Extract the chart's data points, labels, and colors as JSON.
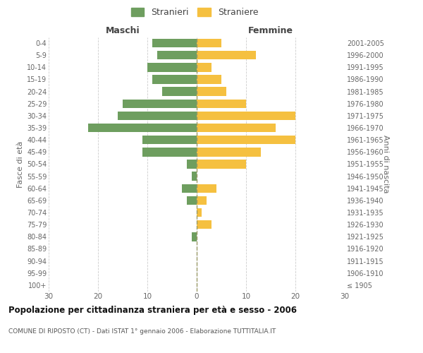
{
  "age_groups": [
    "100+",
    "95-99",
    "90-94",
    "85-89",
    "80-84",
    "75-79",
    "70-74",
    "65-69",
    "60-64",
    "55-59",
    "50-54",
    "45-49",
    "40-44",
    "35-39",
    "30-34",
    "25-29",
    "20-24",
    "15-19",
    "10-14",
    "5-9",
    "0-4"
  ],
  "birth_years": [
    "≤ 1905",
    "1906-1910",
    "1911-1915",
    "1916-1920",
    "1921-1925",
    "1926-1930",
    "1931-1935",
    "1936-1940",
    "1941-1945",
    "1946-1950",
    "1951-1955",
    "1956-1960",
    "1961-1965",
    "1966-1970",
    "1971-1975",
    "1976-1980",
    "1981-1985",
    "1986-1990",
    "1991-1995",
    "1996-2000",
    "2001-2005"
  ],
  "maschi": [
    0,
    0,
    0,
    0,
    1,
    0,
    0,
    2,
    3,
    1,
    2,
    11,
    11,
    22,
    16,
    15,
    7,
    9,
    10,
    8,
    9
  ],
  "femmine": [
    0,
    0,
    0,
    0,
    0,
    3,
    1,
    2,
    4,
    0,
    10,
    13,
    20,
    16,
    20,
    10,
    6,
    5,
    3,
    12,
    5
  ],
  "color_maschi": "#6e9e5f",
  "color_femmine": "#f5c040",
  "xlim": 30,
  "title": "Popolazione per cittadinanza straniera per età e sesso - 2006",
  "subtitle": "COMUNE DI RIPOSTO (CT) - Dati ISTAT 1° gennaio 2006 - Elaborazione TUTTITALIA.IT",
  "ylabel_left": "Fasce di età",
  "ylabel_right": "Anni di nascita",
  "label_maschi": "Stranieri",
  "label_femmine": "Straniere",
  "header_left": "Maschi",
  "header_right": "Femmine",
  "background_color": "#ffffff",
  "grid_color": "#cccccc",
  "zero_line_color": "#999966"
}
